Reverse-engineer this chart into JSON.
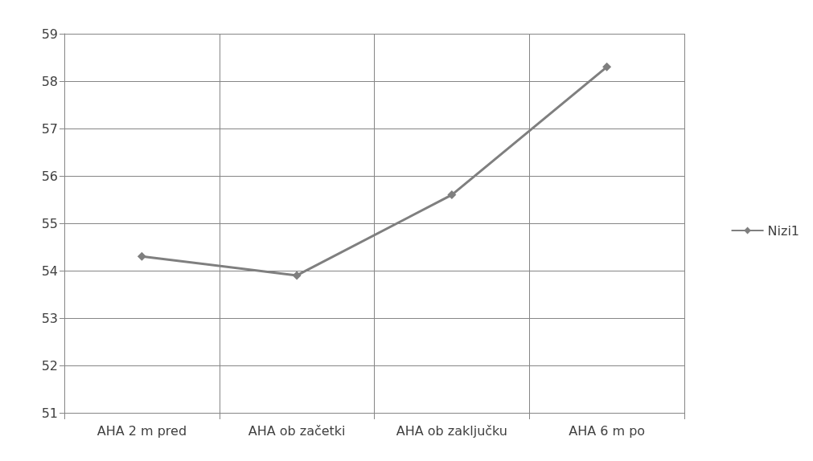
{
  "chart_data": {
    "type": "line",
    "categories": [
      "AHA 2 m pred",
      "AHA ob začetki",
      "AHA ob zaključku",
      "AHA 6 m po"
    ],
    "series": [
      {
        "name": "Nizi1",
        "color": "#7f7f7f",
        "values": [
          54.3,
          53.9,
          55.6,
          58.3
        ]
      }
    ],
    "ylim": [
      51,
      59
    ],
    "yticks": [
      51,
      52,
      53,
      54,
      55,
      56,
      57,
      58,
      59
    ],
    "grid": true,
    "legend": "right",
    "marker": "diamond",
    "line_style": "solid"
  }
}
